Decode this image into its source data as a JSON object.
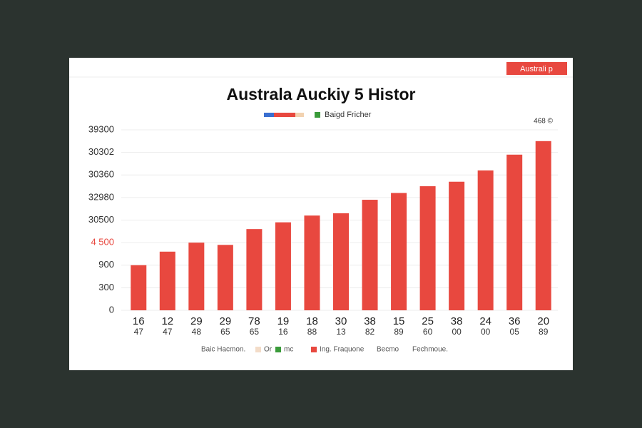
{
  "chart_data": {
    "type": "bar",
    "title": "Australa Auckiy 5 Histor",
    "badge": "Australi p",
    "corner_note": "468 ©",
    "legend_top": "Baigd Fricher",
    "legend_bottom": [
      "Baic Hacmon.",
      "Or",
      "mc",
      "Ing. Fraquone",
      "Becmo",
      "Fechmoue."
    ],
    "categories": [
      "16",
      "12",
      "29",
      "29",
      "78",
      "19",
      "18",
      "30",
      "38",
      "15",
      "25",
      "38",
      "24",
      "36",
      "20"
    ],
    "category_sublabels": [
      "47",
      "47",
      "48",
      "65",
      "65",
      "16",
      "88",
      "13",
      "82",
      "89",
      "60",
      "00",
      "00",
      "05",
      "89"
    ],
    "values": [
      2.0,
      2.6,
      3.0,
      2.9,
      3.6,
      3.9,
      4.2,
      4.3,
      4.9,
      5.2,
      5.5,
      5.7,
      6.2,
      6.9,
      7.5
    ],
    "color": "#e8483f",
    "ylim": [
      0,
      8
    ],
    "yticks": [
      0,
      1,
      2,
      3,
      4,
      5,
      6,
      7,
      8
    ],
    "y_axis_labels": [
      "0",
      "300",
      "900",
      "4 500",
      "30500",
      "32980",
      "30360",
      "30302",
      "39300"
    ],
    "grid": true
  }
}
